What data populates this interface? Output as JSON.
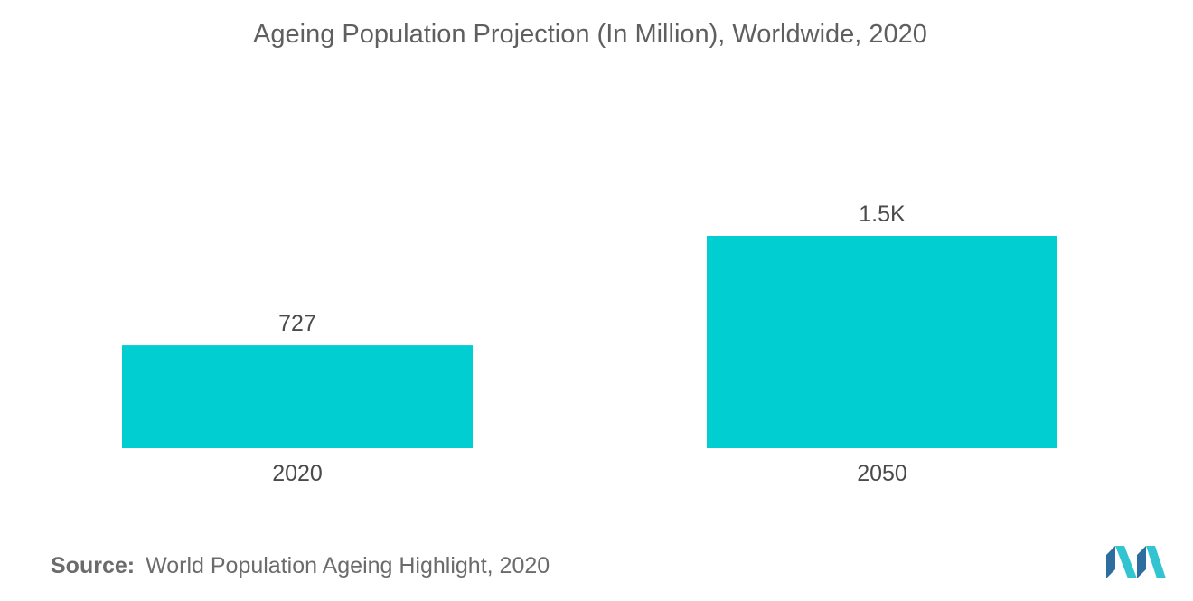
{
  "title": "Ageing Population Projection (In Million), Worldwide, 2020",
  "source": {
    "label": "Source:",
    "text": "World Population Ageing Highlight, 2020"
  },
  "colors": {
    "bar": "#00ced1",
    "logo_dark": "#2d6e9e",
    "logo_light": "#33c4d1"
  },
  "logo": {
    "icon": "mordor-intelligence-logo-icon"
  },
  "chart_data": {
    "type": "bar",
    "categories": [
      "2020",
      "2050"
    ],
    "values": [
      727,
      1500
    ],
    "value_labels": [
      "727",
      "1.5K"
    ],
    "title": "Ageing Population Projection (In Million), Worldwide, 2020",
    "xlabel": "",
    "ylabel": "",
    "grid": false,
    "legend": "none"
  }
}
